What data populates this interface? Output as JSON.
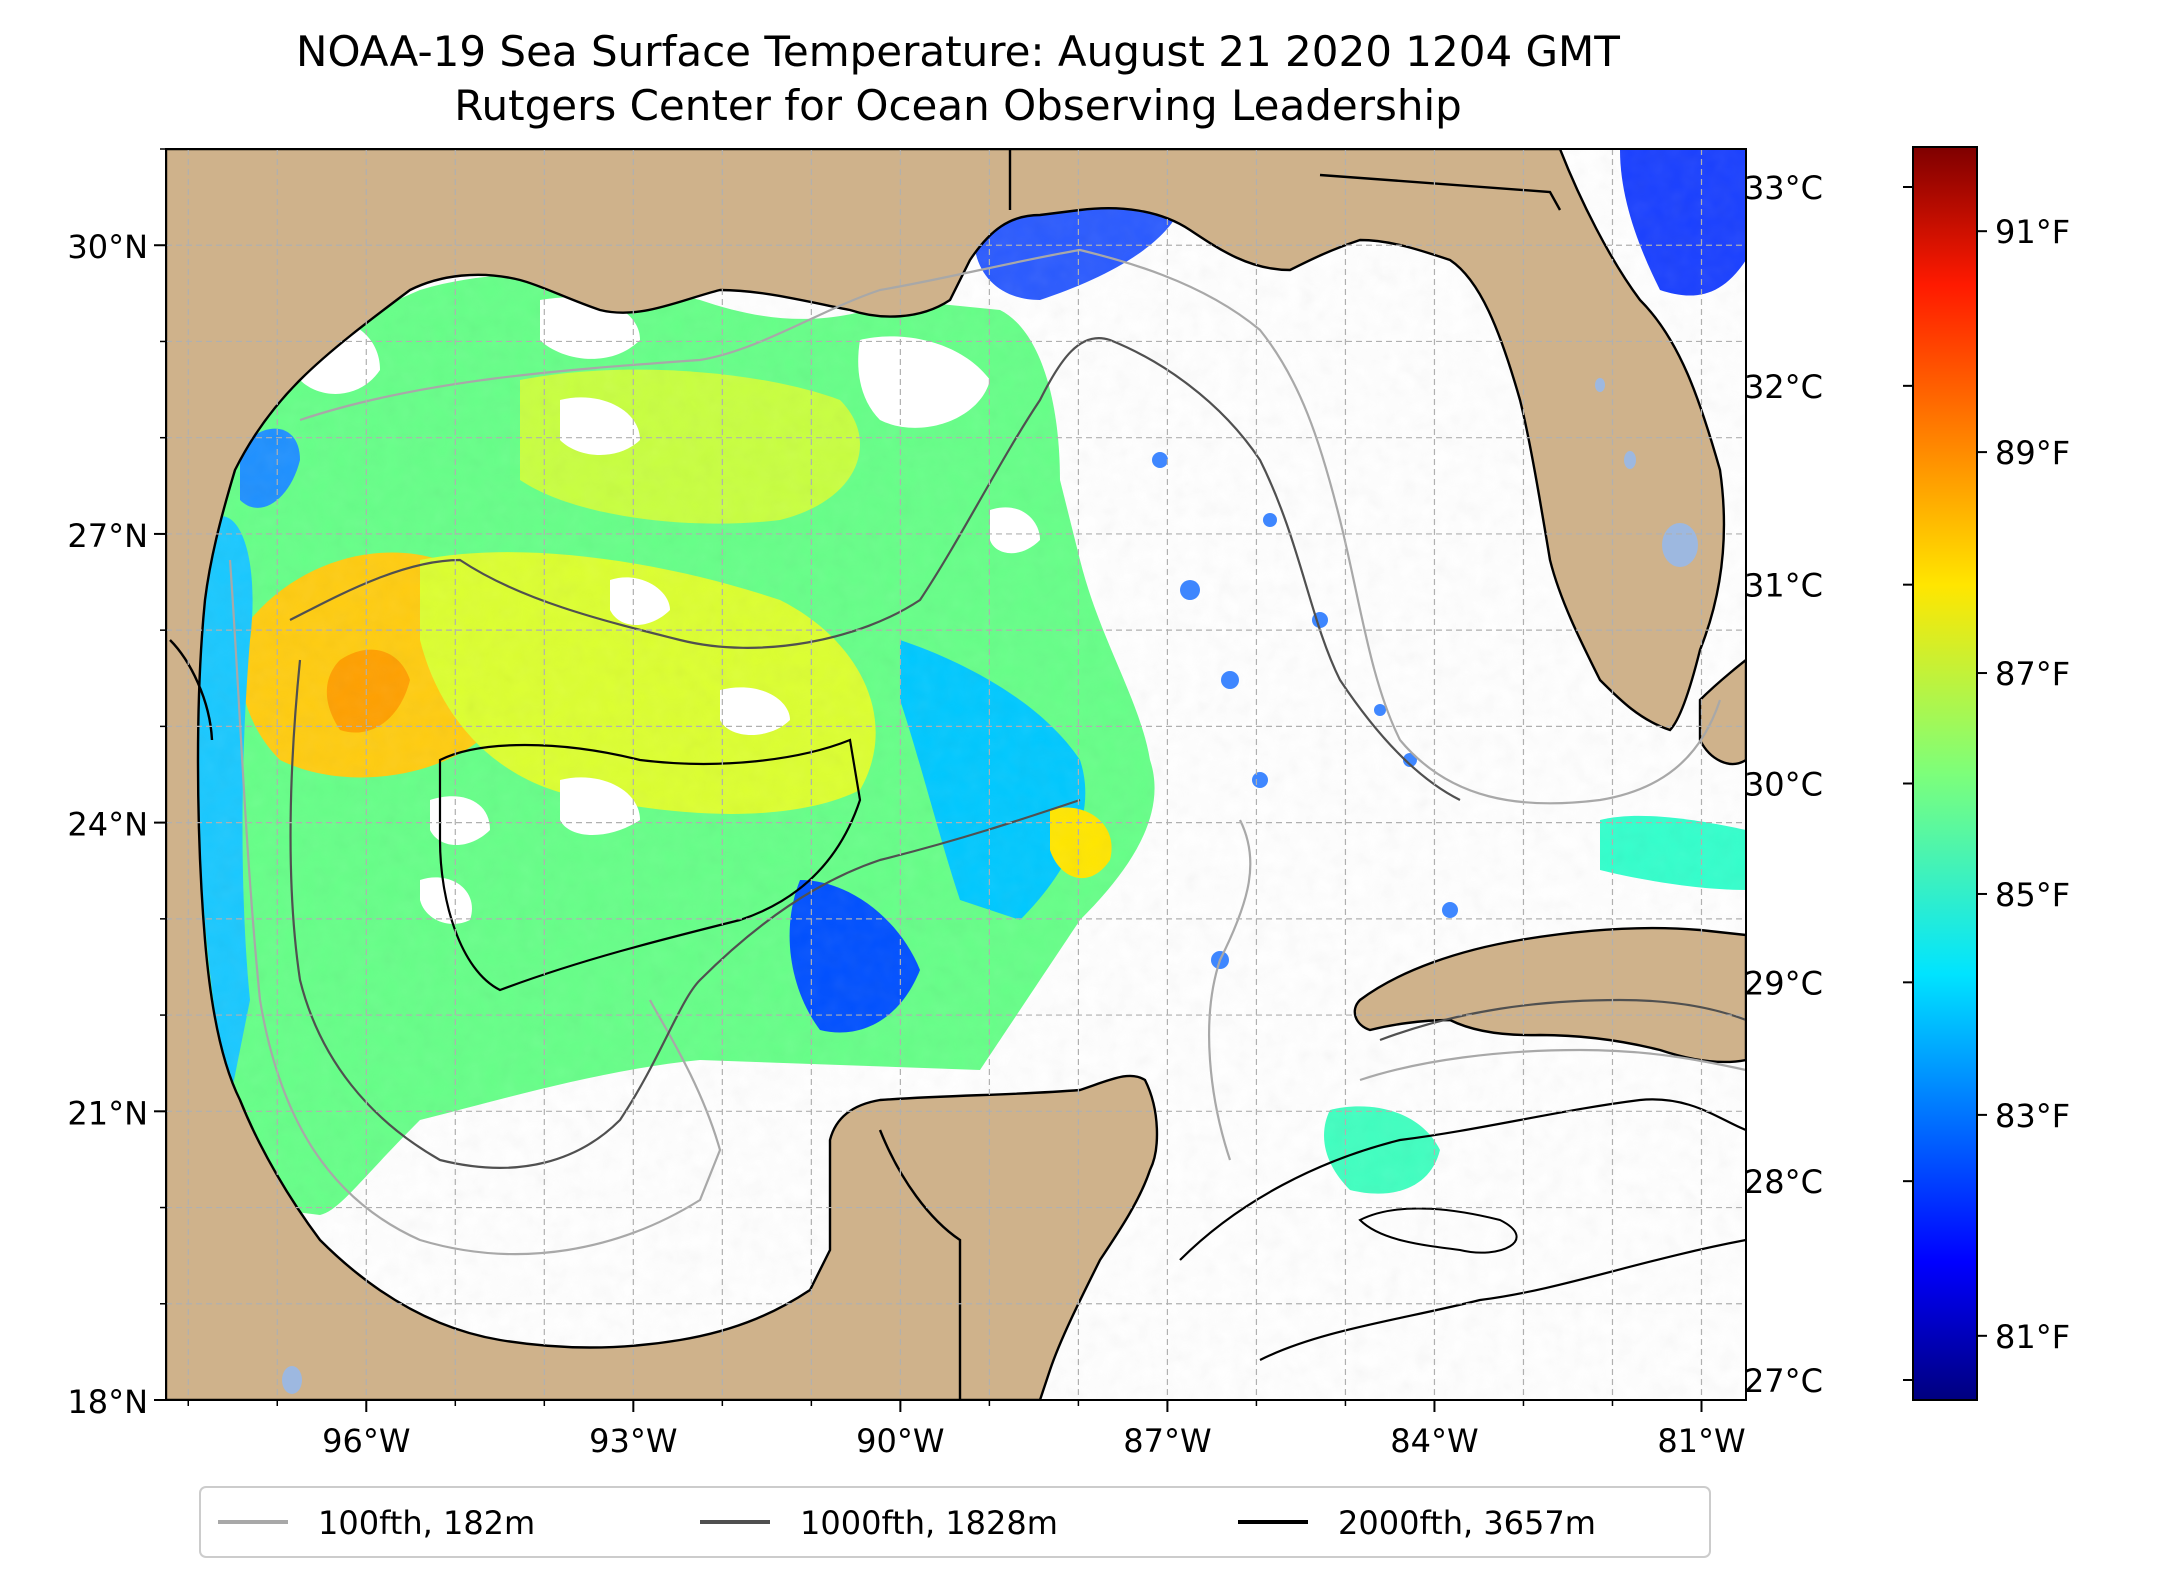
{
  "title": "NOAA-19 Sea Surface Temperature: August 21 2020 1204 GMT",
  "subtitle": "Rutgers Center for Ocean Observing Leadership",
  "map": {
    "lon_range": [
      -98.25,
      -80.5
    ],
    "lat_range": [
      18,
      31
    ],
    "lat_ticks": [
      {
        "value": 30,
        "label": "30°N"
      },
      {
        "value": 27,
        "label": "27°N"
      },
      {
        "value": 24,
        "label": "24°N"
      },
      {
        "value": 21,
        "label": "21°N"
      },
      {
        "value": 18,
        "label": "18°N"
      }
    ],
    "lon_ticks": [
      {
        "value": -96,
        "label": "96°W"
      },
      {
        "value": -93,
        "label": "93°W"
      },
      {
        "value": -90,
        "label": "90°W"
      },
      {
        "value": -87,
        "label": "87°W"
      },
      {
        "value": -84,
        "label": "84°W"
      },
      {
        "value": -81,
        "label": "81°W"
      }
    ],
    "gridlines": true,
    "land_color": "#cfb28b",
    "lake_color": "#9db8e0",
    "sst_min_c": 27.0,
    "sst_max_c": 33.0
  },
  "legend": {
    "position": "bottom-center",
    "items": [
      {
        "label": "100fth, 182m",
        "color": "#a8a8a8"
      },
      {
        "label": "1000fth, 1828m",
        "color": "#505050"
      },
      {
        "label": "2000fth, 3657m",
        "color": "#000000"
      }
    ]
  },
  "colorbar": {
    "celsius_ticks": [
      {
        "value": 33,
        "label": "33°C"
      },
      {
        "value": 32,
        "label": "32°C"
      },
      {
        "value": 31,
        "label": "31°C"
      },
      {
        "value": 30,
        "label": "30°C"
      },
      {
        "value": 29,
        "label": "29°C"
      },
      {
        "value": 28,
        "label": "28°C"
      },
      {
        "value": 27,
        "label": "27°C"
      }
    ],
    "fahrenheit_ticks": [
      {
        "value": 91,
        "label": "91°F"
      },
      {
        "value": 89,
        "label": "89°F"
      },
      {
        "value": 87,
        "label": "87°F"
      },
      {
        "value": 85,
        "label": "85°F"
      },
      {
        "value": 83,
        "label": "83°F"
      },
      {
        "value": 81,
        "label": "81°F"
      }
    ],
    "colormap": "jet"
  }
}
